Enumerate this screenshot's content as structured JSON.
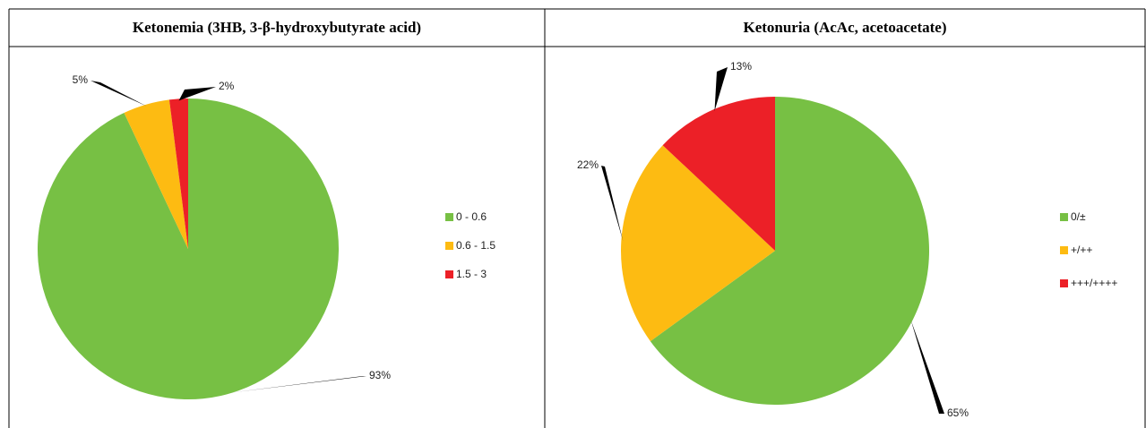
{
  "chart_data": [
    {
      "type": "pie",
      "title": "Ketonemia (3HB, 3-β-hydroxybutyrate acid)",
      "categories": [
        "0 - 0.6",
        "0.6 - 1.5",
        "1.5 - 3"
      ],
      "values": [
        93,
        5,
        2
      ],
      "value_labels": [
        "93%",
        "5%",
        "2%"
      ],
      "colors": [
        "#77c044",
        "#fdbb12",
        "#ec2027"
      ]
    },
    {
      "type": "pie",
      "title": "Ketonuria (AcAc, acetoacetate)",
      "categories": [
        "0/±",
        "+/++",
        "+++/++++"
      ],
      "values": [
        65,
        22,
        13
      ],
      "value_labels": [
        "65%",
        "22%",
        "13%"
      ],
      "colors": [
        "#77c044",
        "#fdbb12",
        "#ec2027"
      ]
    }
  ]
}
